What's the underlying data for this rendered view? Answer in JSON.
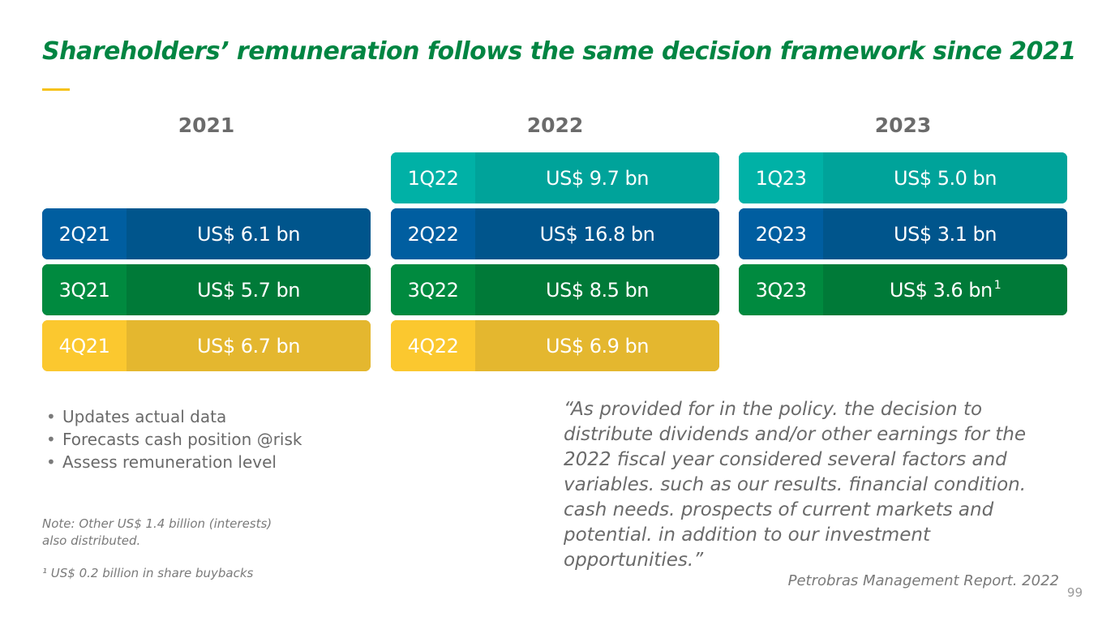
{
  "title": "Shareholders’ remuneration follows the same decision framework since 2021",
  "colors": {
    "title": "#008542",
    "accent": "#f6c21a",
    "teal": "#00a39a",
    "blue": "#00558c",
    "green": "#007a38",
    "yellow": "#e4b72f"
  },
  "years": [
    {
      "year": "2021",
      "rows": [
        {
          "quarter": "2Q21",
          "value": "US$ 6.1 bn",
          "color": "blue"
        },
        {
          "quarter": "3Q21",
          "value": "US$ 5.7 bn",
          "color": "green"
        },
        {
          "quarter": "4Q21",
          "value": "US$ 6.7 bn",
          "color": "yellow"
        }
      ]
    },
    {
      "year": "2022",
      "rows": [
        {
          "quarter": "1Q22",
          "value": "US$ 9.7 bn",
          "color": "teal"
        },
        {
          "quarter": "2Q22",
          "value": "US$ 16.8 bn",
          "color": "blue"
        },
        {
          "quarter": "3Q22",
          "value": "US$ 8.5 bn",
          "color": "green"
        },
        {
          "quarter": "4Q22",
          "value": "US$ 6.9 bn",
          "color": "yellow"
        }
      ]
    },
    {
      "year": "2023",
      "rows": [
        {
          "quarter": "1Q23",
          "value": "US$ 5.0 bn",
          "color": "teal"
        },
        {
          "quarter": "2Q23",
          "value": "US$ 3.1 bn",
          "color": "blue"
        },
        {
          "quarter": "3Q23",
          "value": "US$ 3.6 bn",
          "sup": "1",
          "color": "green"
        }
      ]
    }
  ],
  "bullets": [
    "Updates actual data",
    "Forecasts cash position @risk",
    "Assess remuneration level"
  ],
  "note": "Note: Other US$ 1.4 billion (interests) also distributed.",
  "footnote": "¹ US$ 0.2 billion in share buybacks",
  "quote": "“As provided for in the policy. the decision to distribute dividends and/or other earnings for the 2022 fiscal year considered several factors and variables. such as our results. financial condition. cash needs. prospects of current markets and potential. in addition to our investment opportunities.”",
  "source": "Petrobras Management Report. 2022",
  "page_number": "99"
}
